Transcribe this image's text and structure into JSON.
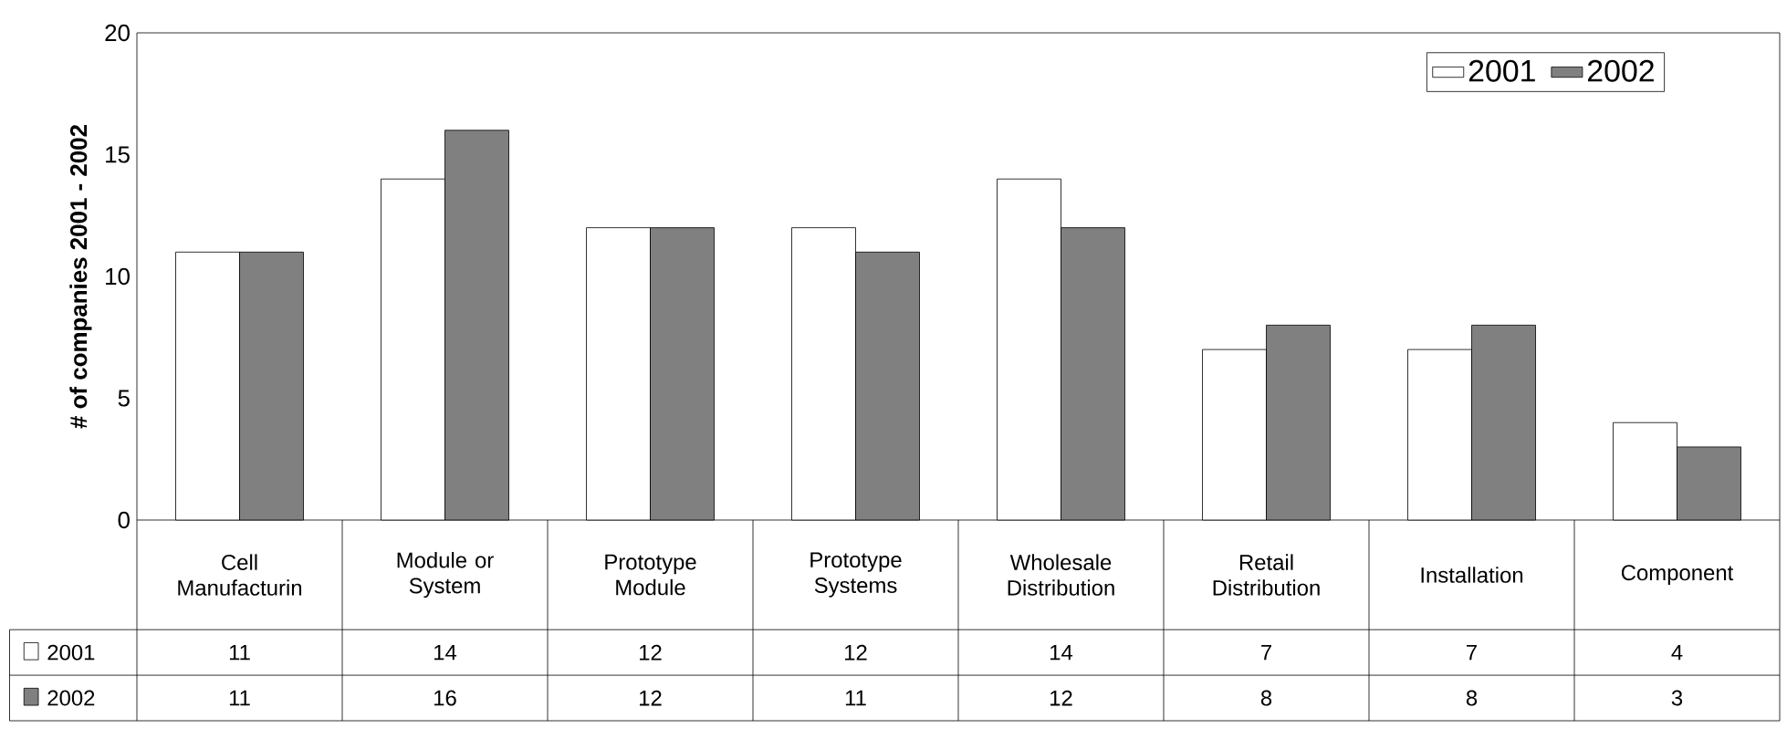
{
  "chart_data": {
    "type": "bar",
    "ylabel": "# of companies 2001 - 2002",
    "categories": [
      "Cell Manufacturin",
      "Module or System",
      "Prototype Module",
      "Prototype Systems",
      "Wholesale Distribution",
      "Retail Distribution",
      "Installation",
      "Component"
    ],
    "series": [
      {
        "name": "2001",
        "color": "#ffffff",
        "values": [
          11,
          14,
          12,
          12,
          14,
          7,
          7,
          4
        ]
      },
      {
        "name": "2002",
        "color": "#808080",
        "values": [
          11,
          16,
          12,
          11,
          12,
          8,
          8,
          3
        ]
      }
    ],
    "ylim": [
      0,
      20
    ],
    "yticks": [
      0,
      5,
      10,
      15,
      20
    ],
    "grid": false,
    "legend": "top right",
    "data_labels": true
  }
}
